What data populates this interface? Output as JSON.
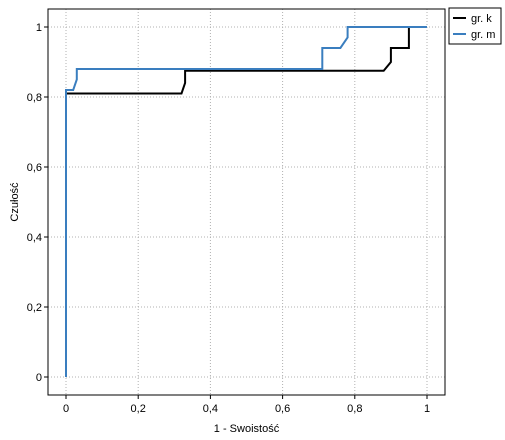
{
  "chart_data": {
    "type": "line",
    "xlabel": "1 - Swoistość",
    "ylabel": "Czułość",
    "xlim": [
      0,
      1
    ],
    "ylim": [
      0,
      1
    ],
    "x_ticks": [
      0,
      0.2,
      0.4,
      0.6,
      0.8,
      1
    ],
    "y_ticks": [
      0,
      0.2,
      0.4,
      0.6,
      0.8,
      1
    ],
    "x_tick_labels": [
      "0",
      "0,2",
      "0,4",
      "0,6",
      "0,8",
      "1"
    ],
    "y_tick_labels": [
      "0",
      "0,2",
      "0,4",
      "0,6",
      "0,8",
      "1"
    ],
    "grid": true,
    "legend_position": "top-right-outside",
    "series": [
      {
        "name": "gr. k",
        "color": "#000000",
        "x": [
          0,
          0,
          0.32,
          0.33,
          0.33,
          0.88,
          0.9,
          0.9,
          0.95,
          0.95,
          1
        ],
        "y": [
          0,
          0.81,
          0.81,
          0.84,
          0.875,
          0.875,
          0.9,
          0.94,
          0.94,
          1,
          1
        ]
      },
      {
        "name": "gr. m",
        "color": "#3a7ebf",
        "x": [
          0,
          0,
          0.02,
          0.03,
          0.03,
          0.71,
          0.71,
          0.76,
          0.78,
          0.78,
          1
        ],
        "y": [
          0,
          0.82,
          0.82,
          0.85,
          0.88,
          0.88,
          0.94,
          0.94,
          0.97,
          1,
          1
        ]
      }
    ]
  }
}
